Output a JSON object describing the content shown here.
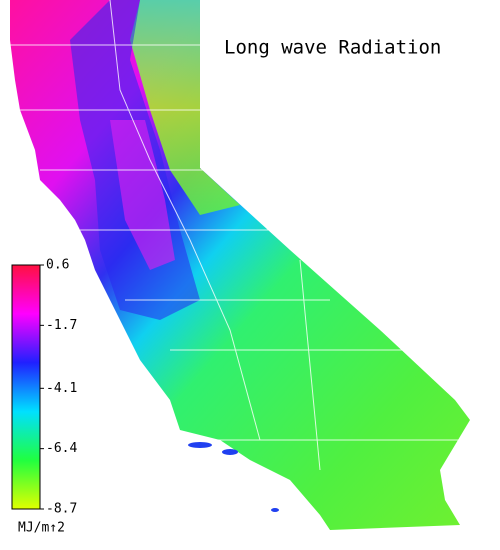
{
  "title": "Long wave Radiation",
  "colorbar": {
    "lim": [
      -8.7,
      0.6
    ],
    "ticks": [
      0.6,
      -1.7,
      -4.1,
      -6.4,
      -8.7
    ],
    "unit": "MJ/m↑2",
    "colors": [
      "#ff1040",
      "#ff00ff",
      "#2020ff",
      "#00e0ff",
      "#20ff40",
      "#e0ff00"
    ]
  }
}
